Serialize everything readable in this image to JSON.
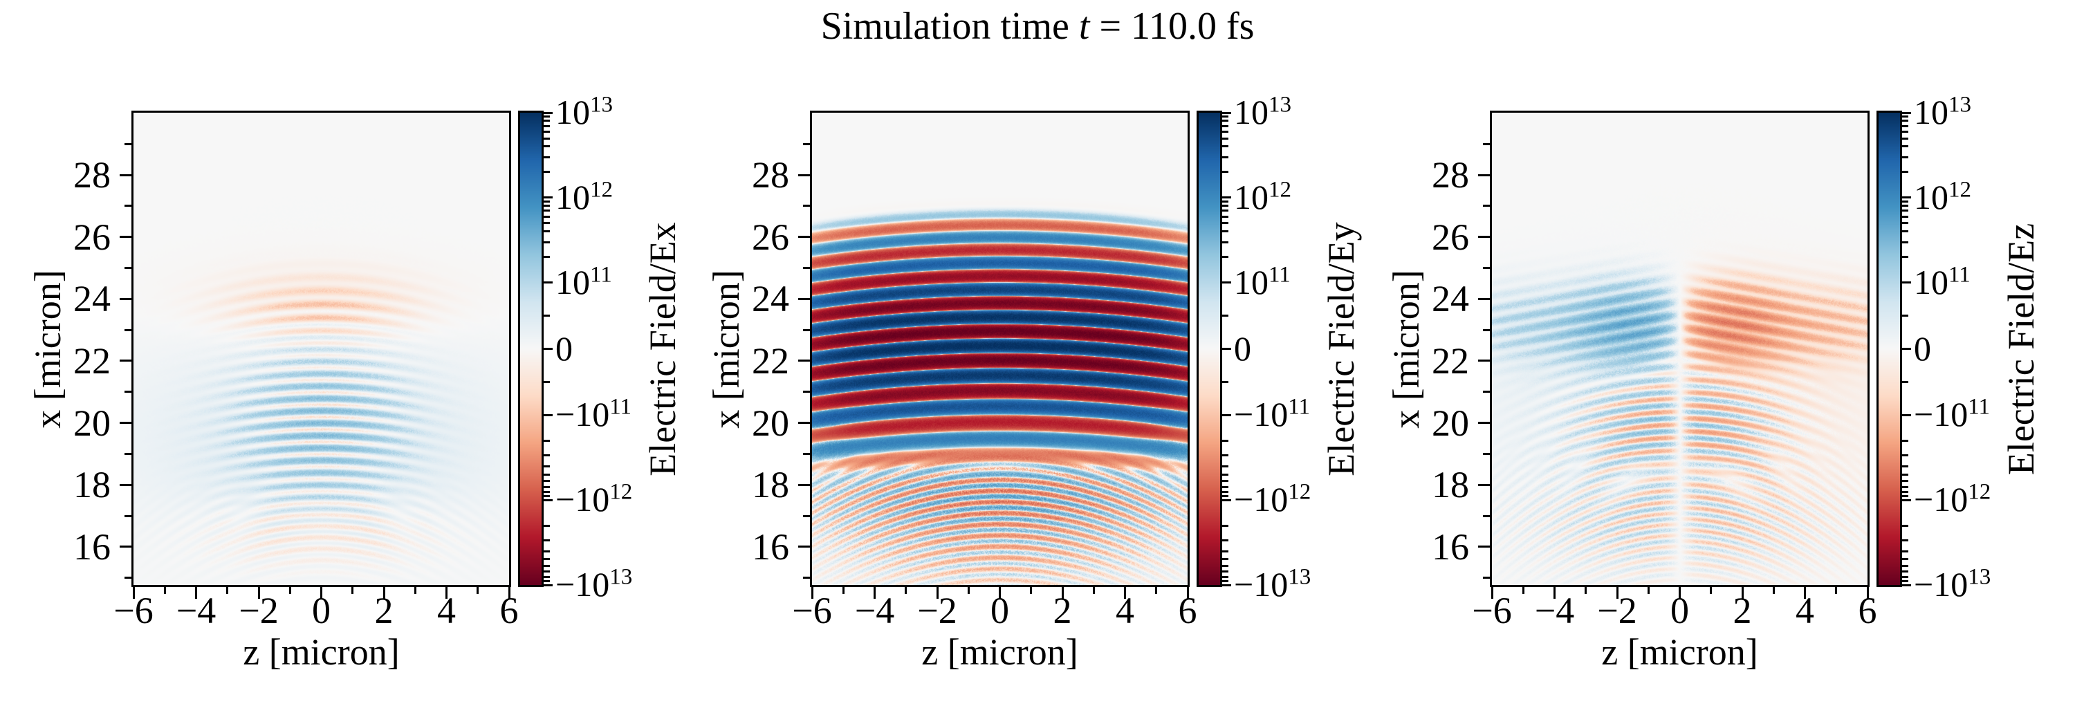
{
  "title": {
    "prefix": "Simulation time ",
    "variable": "t",
    "suffix": " = 110.0 fs",
    "full": "Simulation time t = 110.0 fs"
  },
  "chart_data": {
    "type": "heatmap",
    "title": "Simulation time t = 110.0 fs",
    "grid": false,
    "colormap": {
      "name": "RdBu",
      "anchors": [
        "#67001f",
        "#b2182b",
        "#d6604d",
        "#f4a582",
        "#fddbc7",
        "#f7f7f7",
        "#d1e5f0",
        "#92c5de",
        "#4393c3",
        "#2166ac",
        "#053061"
      ],
      "zero_color": "#f7f7f7",
      "positive_color_meaning": "positive field (blue)",
      "negative_color_meaning": "negative field (red)"
    },
    "scale": {
      "type": "symlog",
      "vmin": -10000000000000.0,
      "vmax": 10000000000000.0,
      "linthresh": 100000000000.0,
      "linear_fraction": 0.28,
      "decade_fraction": 0.36
    },
    "axes": {
      "xlabel": "z [micron]",
      "ylabel": "x [micron]",
      "x_range": [
        -6,
        6
      ],
      "y_range": [
        14.77,
        30.01
      ],
      "x_major_ticks": [
        -6,
        -4,
        -2,
        0,
        2,
        4,
        6
      ],
      "x_minor_ticks": [
        -5,
        -3,
        -1,
        1,
        3,
        5
      ],
      "y_major_ticks": [
        16,
        18,
        20,
        22,
        24,
        26,
        28
      ],
      "y_minor_ticks": [
        15,
        17,
        19,
        21,
        23,
        25,
        27,
        29
      ]
    },
    "colorbar": {
      "major_ticks": [
        {
          "value": 10000000000000.0,
          "label": "10^13"
        },
        {
          "value": 1000000000000.0,
          "label": "10^12"
        },
        {
          "value": 100000000000.0,
          "label": "10^11"
        },
        {
          "value": 0,
          "label": "0"
        },
        {
          "value": -100000000000.0,
          "label": "−10^11"
        },
        {
          "value": -1000000000000.0,
          "label": "−10^12"
        },
        {
          "value": -10000000000000.0,
          "label": "−10^13"
        }
      ],
      "minor_tick_rule": "2–9 per log decade on both signs plus ±5e10 in linear zone"
    },
    "panels": [
      {
        "id": "Ex",
        "colorbar_label": "Electric Field/Ex",
        "description": "Faint field: broad light-blue glow (~5e10) over x=15–24 across all z; fine blue-dominant horizontal fringes (period ~0.4 um, ~2e11) centered near x=19.9, |z|<2.5; light orange band clusters near x=23.7 and x=16.5 with downward-curving arcs.",
        "field_model": {
          "broad": {
            "amp": 0.5,
            "cx": 19.3,
            "sx": 3.6,
            "sz": 6.0
          },
          "stripes": {
            "amp": 1.9,
            "cx": 19.9,
            "sx": 2.3,
            "sz": 2.3,
            "wl": 0.4,
            "curv": 0.03,
            "bias": 0.35
          },
          "upper_orange": {
            "amp": -0.95,
            "cx": 23.7,
            "sx": 1.0,
            "sz": 2.7,
            "wl": 0.45,
            "curv": 0.04
          },
          "upper_haze": {
            "amp": -0.25,
            "cx": 23.9,
            "sx": 1.4,
            "sz": 4.5
          },
          "lower_orange": {
            "amp": -0.85,
            "cx": 16.5,
            "sx": 1.2,
            "sz": 3.6,
            "wl": 0.38,
            "curv": 0.07
          }
        }
      },
      {
        "id": "Ey",
        "colorbar_label": "Electric Field/Ey",
        "description": "Strong laser pulse: alternating red/blue horizontal bands (period ~0.8 um, slightly chirped, sagging ~0.4 um at |z|=6) spanning x≈18.7–26.6, amplitude up to ~1e13 near x=22.7; topmost orange band at x≈26.4; weaker noisy fine fringes below x≈18.6 down to x≈15; blue patches near |z|≈5.5, x≈20.",
        "field_model": {
          "main": {
            "amp": 100,
            "cx": 22.7,
            "sx": 2.3,
            "wl0": 0.8,
            "chirp": 0.018,
            "phase_ref": 26.42,
            "curv": 0.012,
            "cut_top": 26.75,
            "blend_x": 18.6
          },
          "low": {
            "amp": 5.5,
            "cx": 17.9,
            "sx": 1.3,
            "sz": 4.8,
            "wl": 0.36,
            "curv": 0.05,
            "orange_bias": -0.5,
            "bias_cx": 16.1
          },
          "corner": {
            "amp": 5.0,
            "cz": 5.5,
            "sz": 0.8,
            "cx": 19.9,
            "sx": 1.2
          }
        }
      },
      {
        "id": "Ez",
        "colorbar_label": "Electric Field/Ez",
        "description": "Antisymmetric about z=0 (blue positive left, orange negative right, white node at z≈0): tilted chevron streaks (period ~0.4 um, up to ~5e11) around x≈23.1, |z|≈0.5–3 with faint wings to |z|=6; alternating antisymmetric fringes near x≈19.9 and finer ones near x≈16.9; very light broad blue/orange tint over each half below x≈24.9.",
        "field_model": {
          "node_width": 0.45,
          "blob": {
            "amp": 4.6,
            "cx": 23.15,
            "sx": 1.15,
            "cz": 1.7,
            "sz": 1.9,
            "wing_amp": 1.1,
            "wing_cz": 4.8,
            "wing_sz": 2.2,
            "wl": 0.42,
            "tilt": 0.18
          },
          "mid": {
            "amp": 2.6,
            "cx": 19.9,
            "sx": 1.7,
            "sz": 2.8,
            "wl": 0.42,
            "curv": 0.045
          },
          "low": {
            "amp": 1.2,
            "cx": 16.9,
            "sx": 1.7,
            "sz": 4.2,
            "wl": 0.36,
            "curv": 0.075
          },
          "tint": {
            "amp": 0.4,
            "cx": 20.8,
            "sx": 4.6,
            "sz": 6.5,
            "cut_above": 24.9
          }
        }
      }
    ]
  }
}
